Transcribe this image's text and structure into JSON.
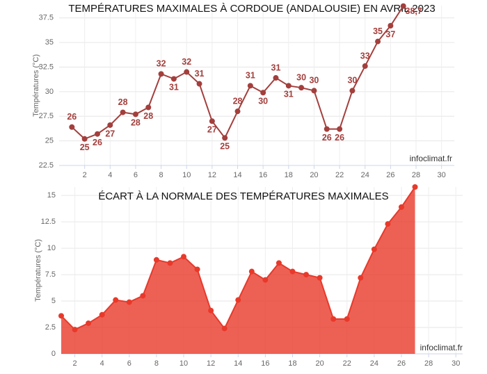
{
  "chart_data": [
    {
      "type": "line",
      "title": "TEMPÉRATURES MAXIMALES À CORDOUE (ANDALOUSIE) EN AVRIL 2023",
      "y_label": "Températures (°C)",
      "credit": "infoclimat.fr",
      "x": [
        1,
        2,
        3,
        4,
        5,
        6,
        7,
        8,
        9,
        10,
        11,
        12,
        13,
        14,
        15,
        16,
        17,
        18,
        19,
        20,
        21,
        22,
        23,
        24,
        25,
        26,
        27
      ],
      "values": [
        26.4,
        25.2,
        25.7,
        26.6,
        27.9,
        27.7,
        28.4,
        31.8,
        31.3,
        32.0,
        30.8,
        27.0,
        25.3,
        28.0,
        30.6,
        29.9,
        31.4,
        30.6,
        30.4,
        30.1,
        26.2,
        26.2,
        30.1,
        32.6,
        35.1,
        36.7,
        38.7
      ],
      "value_labels": [
        "26",
        "25",
        "26",
        "27",
        "28",
        "28",
        "28",
        "32",
        "31",
        "32",
        "31",
        "27",
        "25",
        "28",
        "31",
        "30",
        "31",
        "31",
        "30",
        "30",
        "26",
        "26",
        "30",
        "33",
        "35",
        "37",
        "38,7"
      ],
      "color": "#a33f3c",
      "xlim": [
        0,
        31
      ],
      "xticks": [
        2,
        4,
        6,
        8,
        10,
        12,
        14,
        16,
        18,
        20,
        22,
        24,
        26,
        28,
        30
      ],
      "ylim": [
        22.5,
        38.75
      ],
      "yticks": [
        22.5,
        25,
        27.5,
        30,
        32.5,
        35,
        37.5
      ],
      "grid": true
    },
    {
      "type": "area",
      "title": "ÉCART À LA NORMALE DES TEMPÉRATURES MAXIMALES",
      "y_label": "Températures (°C)",
      "credit": "infoclimat.fr",
      "x": [
        1,
        2,
        3,
        4,
        5,
        6,
        7,
        8,
        9,
        10,
        11,
        12,
        13,
        14,
        15,
        16,
        17,
        18,
        19,
        20,
        21,
        22,
        23,
        24,
        25,
        26,
        27
      ],
      "values": [
        3.6,
        2.3,
        2.9,
        3.7,
        5.1,
        4.9,
        5.5,
        8.9,
        8.6,
        9.2,
        8.0,
        4.1,
        2.4,
        5.1,
        7.8,
        7.0,
        8.6,
        7.8,
        7.5,
        7.2,
        3.3,
        3.3,
        7.2,
        9.9,
        12.3,
        13.9,
        15.8
      ],
      "color": "#e8392a",
      "xlim": [
        1,
        30.5
      ],
      "xticks": [
        2,
        4,
        6,
        8,
        10,
        12,
        14,
        16,
        18,
        20,
        22,
        24,
        26,
        28,
        30
      ],
      "ylim": [
        0,
        15.8
      ],
      "yticks": [
        0,
        2.5,
        5,
        7.5,
        10,
        12.5,
        15
      ],
      "grid": true
    }
  ]
}
